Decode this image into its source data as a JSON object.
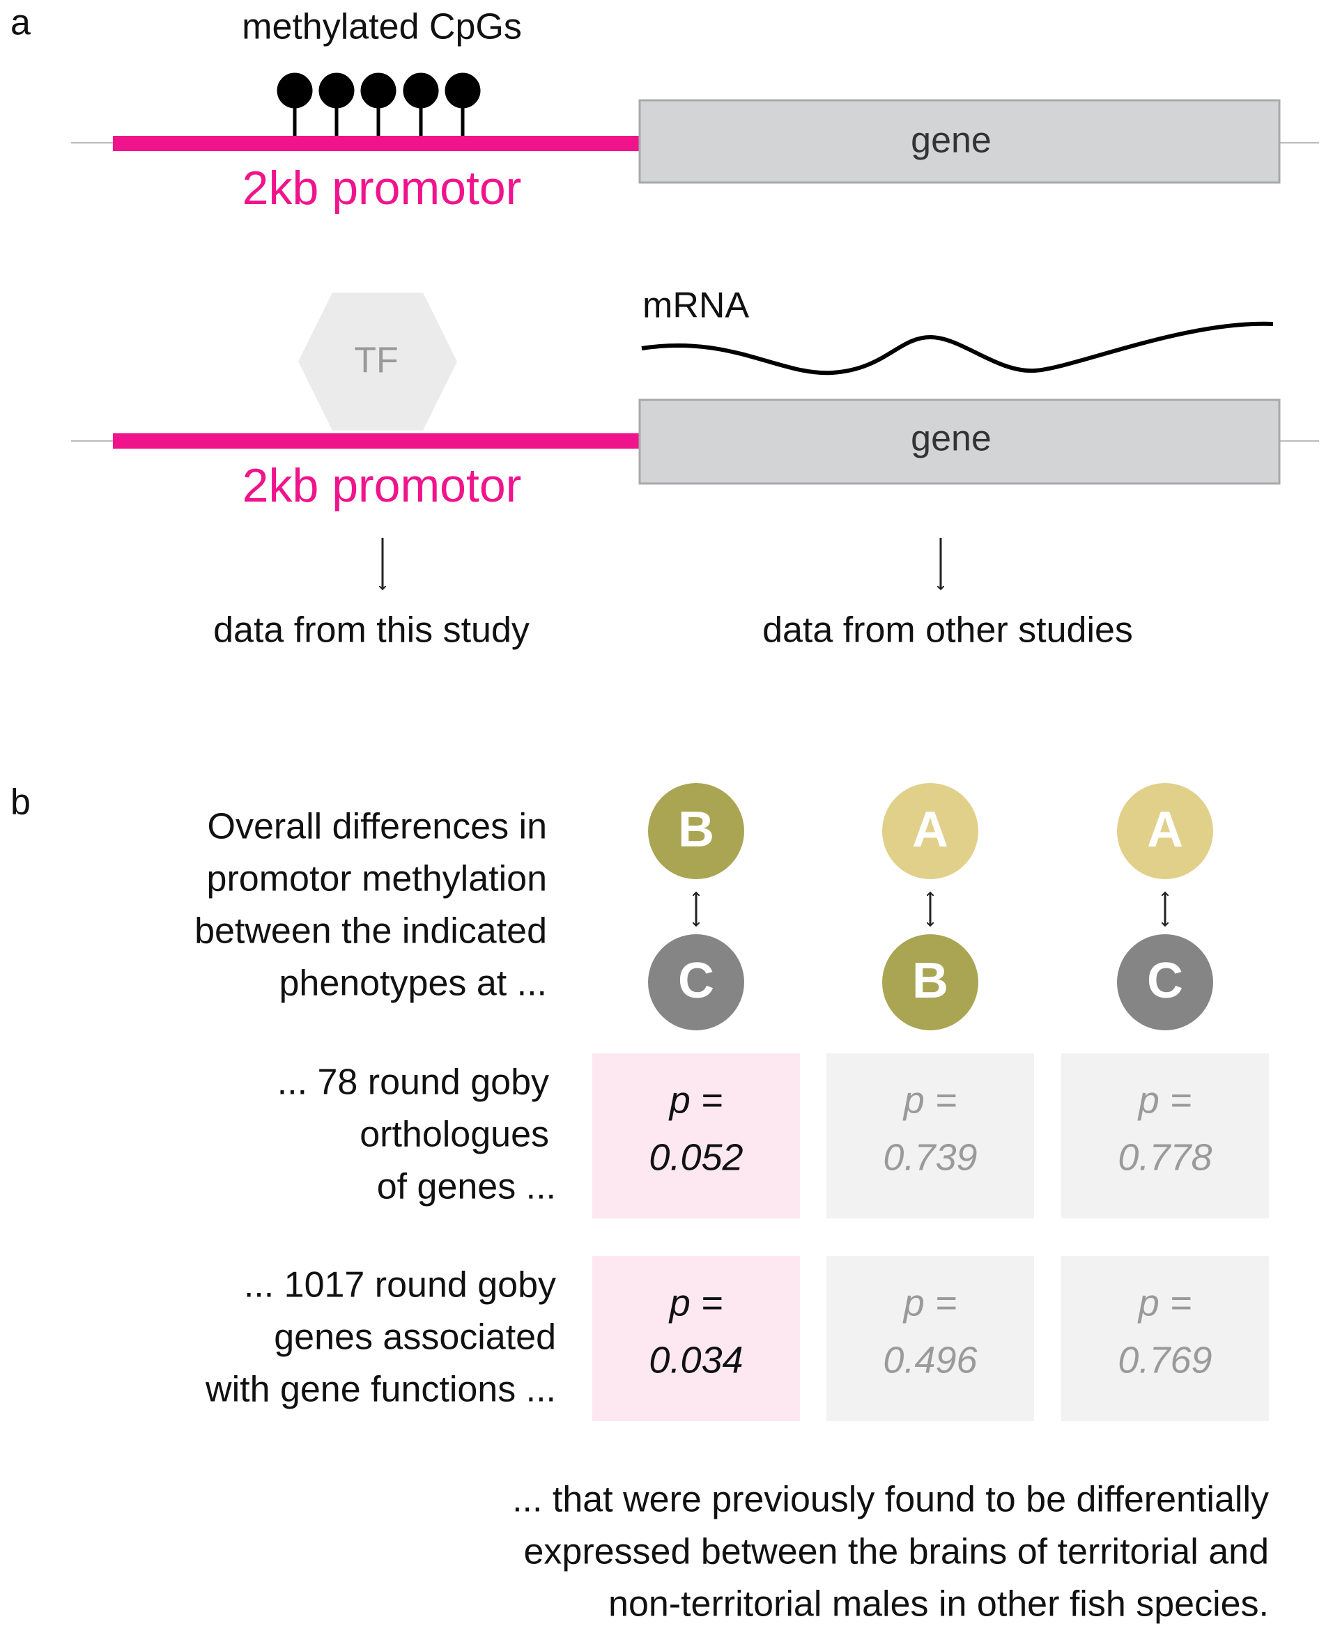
{
  "panel_a": {
    "label": "a",
    "cpg_label": "methylated CpGs",
    "top": {
      "promotor_label": "2kb promotor",
      "gene_label": "gene"
    },
    "bottom": {
      "tf_label": "TF",
      "mrna_label": "mRNA",
      "promotor_label": "2kb promotor",
      "gene_label": "gene"
    },
    "left_caption": "data from this study",
    "right_caption": "data from other studies"
  },
  "panel_b": {
    "label": "b",
    "intro": [
      "Overall differences in",
      "promotor methylation",
      "between the indicated",
      "phenotypes at ..."
    ],
    "comparisons": [
      {
        "top": "B",
        "bottom": "C"
      },
      {
        "top": "A",
        "bottom": "B"
      },
      {
        "top": "A",
        "bottom": "C"
      }
    ],
    "p_label": "p =",
    "rows": [
      {
        "label": [
          "... 78 round goby",
          "orthologues",
          "of genes ..."
        ],
        "p_values": [
          0.052,
          0.739,
          0.778
        ]
      },
      {
        "label": [
          "... 1017 round goby",
          "genes associated",
          "with gene functions ..."
        ],
        "p_values": [
          0.034,
          0.496,
          0.769
        ]
      }
    ],
    "footer": [
      "...  that were previously found to be differentially",
      "expressed between the brains of territorial and",
      "non-territorial males in other fish species."
    ]
  }
}
